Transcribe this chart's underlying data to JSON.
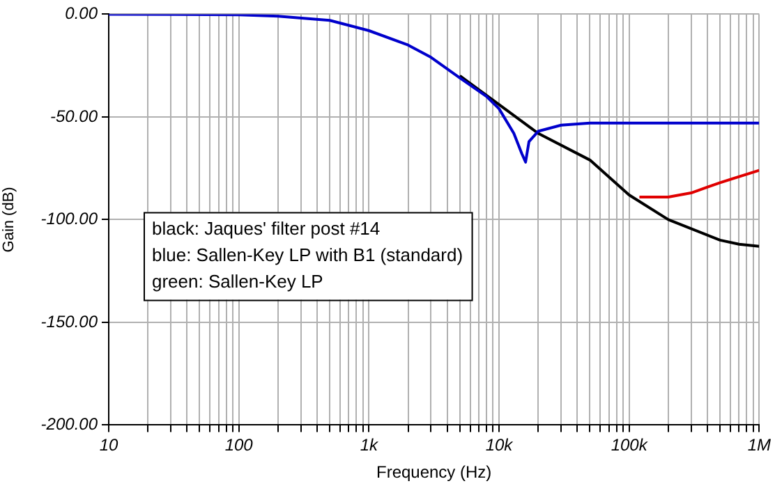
{
  "chart_data": {
    "type": "line",
    "xlabel": "Frequency (Hz)",
    "ylabel": "Gain (dB)",
    "log": "x",
    "grid": true,
    "legend": false,
    "marker": "none",
    "line_style": "solid",
    "xlim": [
      10,
      1000000
    ],
    "xticks": [
      {
        "value": 10,
        "label": "10"
      },
      {
        "value": 20,
        "label": null
      },
      {
        "value": 30,
        "label": null
      },
      {
        "value": 40,
        "label": null
      },
      {
        "value": 50,
        "label": null
      },
      {
        "value": 60,
        "label": null
      },
      {
        "value": 70,
        "label": null
      },
      {
        "value": 80,
        "label": null
      },
      {
        "value": 90,
        "label": null
      },
      {
        "value": 100,
        "label": "100"
      },
      {
        "value": 200,
        "label": null
      },
      {
        "value": 300,
        "label": null
      },
      {
        "value": 400,
        "label": null
      },
      {
        "value": 500,
        "label": null
      },
      {
        "value": 600,
        "label": null
      },
      {
        "value": 700,
        "label": null
      },
      {
        "value": 800,
        "label": null
      },
      {
        "value": 900,
        "label": null
      },
      {
        "value": 1000,
        "label": "1k"
      },
      {
        "value": 2000,
        "label": null
      },
      {
        "value": 3000,
        "label": null
      },
      {
        "value": 4000,
        "label": null
      },
      {
        "value": 5000,
        "label": null
      },
      {
        "value": 6000,
        "label": null
      },
      {
        "value": 7000,
        "label": null
      },
      {
        "value": 8000,
        "label": null
      },
      {
        "value": 9000,
        "label": null
      },
      {
        "value": 10000,
        "label": "10k"
      },
      {
        "value": 20000,
        "label": null
      },
      {
        "value": 30000,
        "label": null
      },
      {
        "value": 40000,
        "label": null
      },
      {
        "value": 50000,
        "label": null
      },
      {
        "value": 60000,
        "label": null
      },
      {
        "value": 70000,
        "label": null
      },
      {
        "value": 80000,
        "label": null
      },
      {
        "value": 90000,
        "label": null
      },
      {
        "value": 100000,
        "label": "100k"
      },
      {
        "value": 200000,
        "label": null
      },
      {
        "value": 300000,
        "label": null
      },
      {
        "value": 400000,
        "label": null
      },
      {
        "value": 500000,
        "label": null
      },
      {
        "value": 600000,
        "label": null
      },
      {
        "value": 700000,
        "label": null
      },
      {
        "value": 800000,
        "label": null
      },
      {
        "value": 900000,
        "label": null
      },
      {
        "value": 1000000,
        "label": "1M"
      }
    ],
    "ylim": [
      -200,
      0
    ],
    "yticks": [
      {
        "value": -200,
        "label": "-200.00"
      },
      {
        "value": -150,
        "label": "-150.00"
      },
      {
        "value": -100,
        "label": "-100.00"
      },
      {
        "value": -50,
        "label": "-50.00"
      },
      {
        "value": 0,
        "label": "0.00"
      }
    ],
    "series": [
      {
        "color": "#e00000",
        "x": [
          120000,
          200000,
          300000,
          500000,
          1000000
        ],
        "values": [
          -89,
          -89,
          -87,
          -82,
          -76
        ]
      },
      {
        "color": "#000000",
        "x": [
          5000,
          10000,
          20000,
          50000,
          100000,
          200000,
          500000,
          700000,
          1000000
        ],
        "values": [
          -30,
          -44,
          -58,
          -71,
          -88,
          -100,
          -110,
          -112,
          -113
        ]
      },
      {
        "color": "#0000cc",
        "x": [
          10,
          100,
          200,
          500,
          1000,
          2000,
          3000,
          5000,
          8000,
          10000,
          13000,
          15000,
          16000,
          17000,
          20000,
          30000,
          50000,
          100000,
          1000000
        ],
        "values": [
          0,
          -0.3,
          -1,
          -3,
          -8,
          -15,
          -21,
          -31,
          -40,
          -46,
          -58,
          -68,
          -72,
          -62,
          -57,
          -54,
          -53,
          -53,
          -53
        ]
      }
    ],
    "annotations": [
      "black: Jaques' filter post #14",
      "blue: Sallen-Key LP with B1 (standard)",
      "green: Sallen-Key LP"
    ]
  }
}
